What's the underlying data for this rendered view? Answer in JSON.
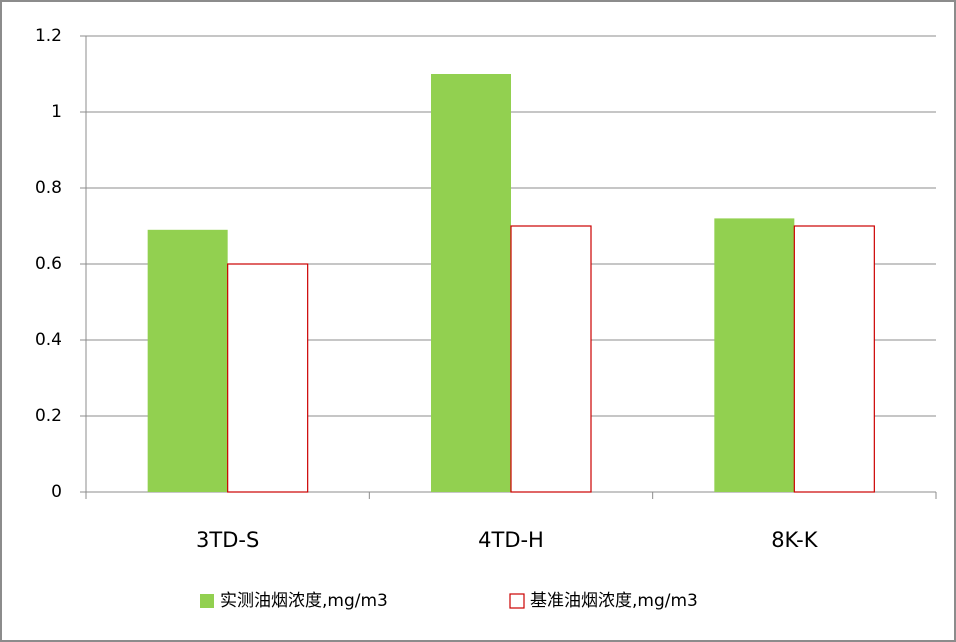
{
  "chart_data": {
    "type": "bar",
    "categories": [
      "3TD-S",
      "4TD-H",
      "8K-K"
    ],
    "series": [
      {
        "name": "实测油烟浓度,mg/m3",
        "color": "#92d050",
        "outline": false,
        "values": [
          0.69,
          1.1,
          0.72
        ]
      },
      {
        "name": "基准油烟浓度,mg/m3",
        "color": "#cc0000",
        "outline": true,
        "values": [
          0.6,
          0.7,
          0.7
        ]
      }
    ],
    "ylim": [
      0,
      1.2
    ],
    "yticks": [
      0,
      0.2,
      0.4,
      0.6,
      0.8,
      1,
      1.2
    ],
    "grid": true,
    "legend": "bottom"
  }
}
